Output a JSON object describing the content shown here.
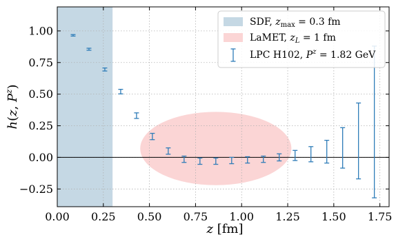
{
  "chart_data": {
    "type": "scatter",
    "xlabel": "z [fm]",
    "ylabel": "h(z, Pz)",
    "xlim": [
      0.0,
      1.8
    ],
    "ylim": [
      -0.39,
      1.19
    ],
    "xticks": [
      0.0,
      0.25,
      0.5,
      0.75,
      1.0,
      1.25,
      1.5,
      1.75
    ],
    "xtick_labels": [
      "0.00",
      "0.25",
      "0.50",
      "0.75",
      "1.00",
      "1.25",
      "1.50",
      "1.75"
    ],
    "yticks": [
      -0.25,
      0.0,
      0.25,
      0.5,
      0.75,
      1.0
    ],
    "ytick_labels": [
      "−0.25",
      "0.00",
      "0.25",
      "0.50",
      "0.75",
      "1.00"
    ],
    "grid": true,
    "zero_line": true,
    "legend_position": "top-right",
    "regions": [
      {
        "legend_label": "SDF, z_max = 0.3 fm",
        "shape": "band",
        "x_range": [
          0.0,
          0.3
        ],
        "color": "#c5d8e4"
      },
      {
        "legend_label": "LaMET, z_L = 1 fm",
        "shape": "ellipse",
        "center": [
          0.86,
          0.07
        ],
        "x_half_width": 0.41,
        "y_half_height": 0.29,
        "color": "#fbd5d5"
      }
    ],
    "series": [
      {
        "name": "LPC H102, Pz = 1.82 GeV",
        "color": "#2e7cb8",
        "x": [
          0.086,
          0.172,
          0.258,
          0.344,
          0.43,
          0.516,
          0.602,
          0.688,
          0.774,
          0.86,
          0.946,
          1.032,
          1.118,
          1.204,
          1.29,
          1.376,
          1.462,
          1.548,
          1.634,
          1.72
        ],
        "y": [
          0.965,
          0.855,
          0.695,
          0.52,
          0.33,
          0.165,
          0.05,
          -0.015,
          -0.03,
          -0.03,
          -0.025,
          -0.02,
          -0.015,
          0.0,
          0.015,
          0.025,
          0.045,
          0.075,
          0.13,
          0.28
        ],
        "err": [
          0.006,
          0.008,
          0.012,
          0.018,
          0.022,
          0.025,
          0.025,
          0.025,
          0.025,
          0.025,
          0.025,
          0.025,
          0.025,
          0.028,
          0.04,
          0.06,
          0.09,
          0.16,
          0.3,
          0.6
        ]
      }
    ]
  },
  "legend": {
    "sdf_text": "SDF, ",
    "sdf_var": "z",
    "sdf_sub": "max",
    "sdf_rest": " = 0.3 fm",
    "lamet_text": "LaMET, ",
    "lamet_var": "z",
    "lamet_sub": "L",
    "lamet_rest": " = 1 fm",
    "lpc_text": "LPC H102, ",
    "lpc_var": "P",
    "lpc_sup": "z",
    "lpc_rest": " = 1.82 GeV"
  },
  "axes": {
    "x_var": "z",
    "x_unit": " [fm]",
    "y_func": "h",
    "y_open": "(",
    "y_var1": "z",
    "y_comma": ", ",
    "y_var2": "P",
    "y_sup": "z",
    "y_close": ")"
  }
}
